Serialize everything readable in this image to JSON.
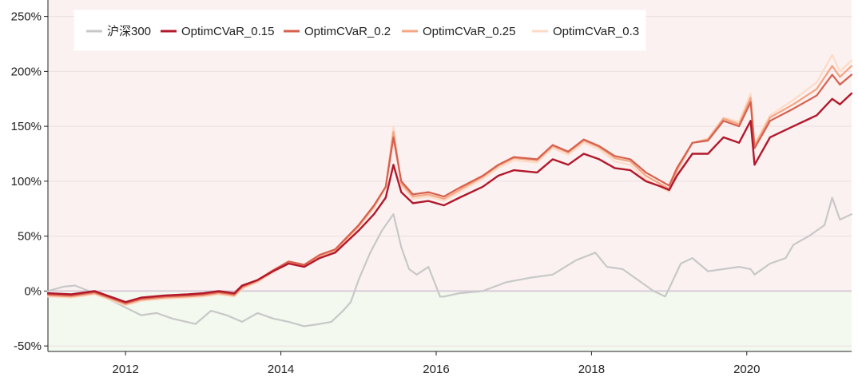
{
  "chart_data": {
    "type": "line",
    "title": "",
    "xlabel": "",
    "ylabel": "",
    "xlim": [
      2011.0,
      2021.35
    ],
    "ylim": [
      -55,
      265
    ],
    "x_ticks": [
      2012,
      2014,
      2016,
      2018,
      2020
    ],
    "x_tick_labels": [
      "2012",
      "2014",
      "2016",
      "2018",
      "2020"
    ],
    "y_ticks": [
      -50,
      0,
      50,
      100,
      150,
      200,
      250
    ],
    "y_tick_labels": [
      "-50%",
      "0%",
      "50%",
      "100%",
      "150%",
      "200%",
      "250%"
    ],
    "grid": true,
    "legend_position": "top-left",
    "shading": {
      "positive_color": "#fbf1f1",
      "negative_color": "#f3f9ef",
      "zero_line_color": "#d8ccd8"
    },
    "series": [
      {
        "name": "沪深300",
        "color": "#c8c8c8",
        "x": [
          2011.0,
          2011.2,
          2011.35,
          2011.6,
          2011.8,
          2012.0,
          2012.2,
          2012.4,
          2012.6,
          2012.9,
          2013.1,
          2013.3,
          2013.5,
          2013.7,
          2013.9,
          2014.1,
          2014.3,
          2014.5,
          2014.65,
          2014.8,
          2014.9,
          2015.0,
          2015.15,
          2015.3,
          2015.45,
          2015.55,
          2015.65,
          2015.75,
          2015.9,
          2016.05,
          2016.1,
          2016.3,
          2016.6,
          2016.9,
          2017.2,
          2017.5,
          2017.8,
          2018.05,
          2018.2,
          2018.4,
          2018.6,
          2018.8,
          2018.95,
          2019.15,
          2019.3,
          2019.5,
          2019.7,
          2019.9,
          2020.05,
          2020.1,
          2020.3,
          2020.5,
          2020.6,
          2020.8,
          2021.0,
          2021.1,
          2021.2,
          2021.35
        ],
        "values": [
          0,
          4,
          5,
          -2,
          -8,
          -15,
          -22,
          -20,
          -25,
          -30,
          -18,
          -22,
          -28,
          -20,
          -25,
          -28,
          -32,
          -30,
          -28,
          -18,
          -10,
          10,
          35,
          55,
          70,
          40,
          20,
          15,
          22,
          -5,
          -5,
          -2,
          0,
          8,
          12,
          15,
          28,
          35,
          22,
          20,
          10,
          0,
          -5,
          25,
          30,
          18,
          20,
          22,
          20,
          15,
          25,
          30,
          42,
          50,
          60,
          85,
          65,
          70
        ]
      },
      {
        "name": "OptimCVaR_0.15",
        "color": "#b2182b",
        "x": [
          2011.0,
          2011.3,
          2011.6,
          2011.8,
          2012.0,
          2012.2,
          2012.5,
          2012.8,
          2013.0,
          2013.2,
          2013.4,
          2013.5,
          2013.7,
          2013.9,
          2014.1,
          2014.3,
          2014.5,
          2014.7,
          2014.85,
          2015.0,
          2015.2,
          2015.35,
          2015.45,
          2015.55,
          2015.7,
          2015.9,
          2016.1,
          2016.3,
          2016.6,
          2016.8,
          2017.0,
          2017.3,
          2017.5,
          2017.7,
          2017.9,
          2018.1,
          2018.3,
          2018.5,
          2018.7,
          2018.9,
          2019.0,
          2019.1,
          2019.3,
          2019.5,
          2019.7,
          2019.9,
          2020.05,
          2020.1,
          2020.3,
          2020.6,
          2020.9,
          2021.1,
          2021.2,
          2021.35
        ],
        "values": [
          -2,
          -3,
          0,
          -5,
          -10,
          -6,
          -4,
          -3,
          -2,
          0,
          -2,
          5,
          10,
          18,
          25,
          22,
          30,
          35,
          45,
          55,
          70,
          85,
          115,
          90,
          80,
          82,
          78,
          85,
          95,
          105,
          110,
          108,
          120,
          115,
          125,
          120,
          112,
          110,
          100,
          95,
          92,
          105,
          125,
          125,
          140,
          135,
          155,
          115,
          140,
          150,
          160,
          175,
          170,
          180
        ]
      },
      {
        "name": "OptimCVaR_0.2",
        "color": "#d6604d",
        "x": [
          2011.0,
          2011.3,
          2011.6,
          2011.8,
          2012.0,
          2012.2,
          2012.5,
          2012.8,
          2013.0,
          2013.2,
          2013.4,
          2013.5,
          2013.7,
          2013.9,
          2014.1,
          2014.3,
          2014.5,
          2014.7,
          2014.85,
          2015.0,
          2015.2,
          2015.35,
          2015.45,
          2015.55,
          2015.7,
          2015.9,
          2016.1,
          2016.3,
          2016.6,
          2016.8,
          2017.0,
          2017.3,
          2017.5,
          2017.7,
          2017.9,
          2018.1,
          2018.3,
          2018.5,
          2018.7,
          2018.9,
          2019.0,
          2019.1,
          2019.3,
          2019.5,
          2019.7,
          2019.9,
          2020.05,
          2020.1,
          2020.3,
          2020.6,
          2020.9,
          2021.1,
          2021.2,
          2021.35
        ],
        "values": [
          -3,
          -4,
          -1,
          -6,
          -11,
          -7,
          -5,
          -4,
          -3,
          -1,
          -3,
          4,
          10,
          19,
          27,
          24,
          33,
          38,
          49,
          60,
          78,
          95,
          140,
          100,
          88,
          90,
          86,
          94,
          105,
          115,
          122,
          120,
          133,
          127,
          138,
          132,
          123,
          120,
          108,
          100,
          96,
          112,
          135,
          137,
          155,
          150,
          172,
          130,
          155,
          166,
          178,
          197,
          188,
          197
        ]
      },
      {
        "name": "OptimCVaR_0.25",
        "color": "#f4a582",
        "x": [
          2011.0,
          2011.3,
          2011.6,
          2011.8,
          2012.0,
          2012.2,
          2012.5,
          2012.8,
          2013.0,
          2013.2,
          2013.4,
          2013.5,
          2013.7,
          2013.9,
          2014.1,
          2014.3,
          2014.5,
          2014.7,
          2014.85,
          2015.0,
          2015.2,
          2015.35,
          2015.45,
          2015.55,
          2015.7,
          2015.9,
          2016.1,
          2016.3,
          2016.6,
          2016.8,
          2017.0,
          2017.3,
          2017.5,
          2017.7,
          2017.9,
          2018.1,
          2018.3,
          2018.5,
          2018.7,
          2018.9,
          2019.0,
          2019.1,
          2019.3,
          2019.5,
          2019.7,
          2019.9,
          2020.05,
          2020.1,
          2020.3,
          2020.6,
          2020.9,
          2021.1,
          2021.2,
          2021.35
        ],
        "values": [
          -4,
          -5,
          -2,
          -7,
          -12,
          -8,
          -6,
          -5,
          -4,
          -2,
          -4,
          3,
          9,
          18,
          26,
          23,
          32,
          37,
          48,
          59,
          77,
          95,
          145,
          98,
          86,
          88,
          84,
          92,
          104,
          114,
          121,
          119,
          132,
          126,
          137,
          131,
          121,
          118,
          105,
          97,
          93,
          110,
          135,
          138,
          157,
          152,
          176,
          132,
          158,
          170,
          184,
          205,
          195,
          205
        ]
      },
      {
        "name": "OptimCVaR_0.3",
        "color": "#fddbc7",
        "x": [
          2011.0,
          2011.3,
          2011.6,
          2011.8,
          2012.0,
          2012.2,
          2012.5,
          2012.8,
          2013.0,
          2013.2,
          2013.4,
          2013.5,
          2013.7,
          2013.9,
          2014.1,
          2014.3,
          2014.5,
          2014.7,
          2014.85,
          2015.0,
          2015.2,
          2015.35,
          2015.45,
          2015.55,
          2015.7,
          2015.9,
          2016.1,
          2016.3,
          2016.6,
          2016.8,
          2017.0,
          2017.3,
          2017.5,
          2017.7,
          2017.9,
          2018.1,
          2018.3,
          2018.5,
          2018.7,
          2018.9,
          2019.0,
          2019.1,
          2019.3,
          2019.5,
          2019.7,
          2019.9,
          2020.05,
          2020.1,
          2020.3,
          2020.6,
          2020.9,
          2021.1,
          2021.2,
          2021.35
        ],
        "values": [
          -5,
          -6,
          -3,
          -8,
          -13,
          -9,
          -7,
          -6,
          -5,
          -3,
          -5,
          2,
          8,
          17,
          25,
          22,
          31,
          36,
          47,
          58,
          76,
          94,
          150,
          96,
          84,
          86,
          82,
          90,
          102,
          112,
          119,
          117,
          130,
          124,
          135,
          129,
          118,
          115,
          102,
          94,
          90,
          108,
          135,
          139,
          158,
          154,
          180,
          134,
          160,
          174,
          190,
          215,
          200,
          210
        ]
      }
    ]
  }
}
